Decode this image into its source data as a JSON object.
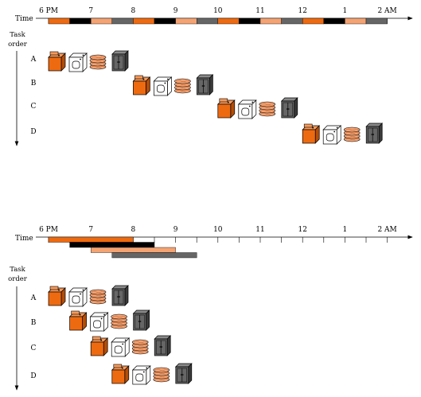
{
  "colors": {
    "washer": "#ee6a10",
    "dryer": "#000000",
    "folder": "#f4a373",
    "storer": "#666666",
    "washer_light": "#f79a5a",
    "washer_dark": "#b54d07",
    "folder_dark": "#c25e25",
    "storer_light": "#8a8a8a",
    "storer_dark": "#3a3a3a"
  },
  "icons": [
    "washer-icon",
    "dryer-icon",
    "folder-icon",
    "storer-icon"
  ],
  "hours": [
    "6 PM",
    "7",
    "8",
    "9",
    "10",
    "11",
    "12",
    "1",
    "2 AM"
  ],
  "time_label": "Time",
  "task_order_label": [
    "Task",
    "order"
  ],
  "tasks": [
    "A",
    "B",
    "C",
    "D"
  ],
  "sequential": {
    "timeline_pattern": [
      "washer",
      "dryer",
      "folder",
      "storer",
      "washer",
      "dryer",
      "folder",
      "storer",
      "washer",
      "dryer",
      "folder",
      "storer",
      "washer",
      "dryer",
      "folder",
      "storer"
    ],
    "task_start_slot": [
      0,
      4,
      8,
      12
    ]
  },
  "pipelined": {
    "stage_bars": [
      {
        "stage": "washer",
        "start_slot": 0,
        "slots": 4
      },
      {
        "stage": "dryer",
        "start_slot": 1,
        "slots": 4
      },
      {
        "stage": "folder",
        "start_slot": 2,
        "slots": 4
      },
      {
        "stage": "storer",
        "start_slot": 3,
        "slots": 4
      }
    ],
    "task_start_slot": [
      0,
      1,
      2,
      3
    ]
  }
}
